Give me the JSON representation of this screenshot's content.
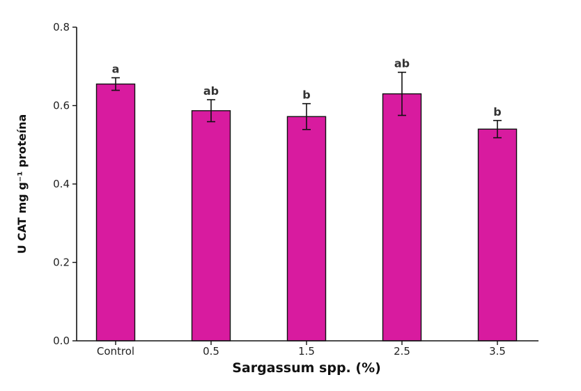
{
  "chart_data": {
    "type": "bar",
    "title": "",
    "xlabel": "Sargassum spp. (%)",
    "ylabel": "U CAT mg g⁻¹ proteína",
    "categories": [
      "Control",
      "0.5",
      "1.5",
      "2.5",
      "3.5"
    ],
    "values": [
      0.655,
      0.587,
      0.572,
      0.63,
      0.54
    ],
    "errors": [
      0.016,
      0.028,
      0.033,
      0.055,
      0.022
    ],
    "significance_labels": [
      "a",
      "ab",
      "b",
      "ab",
      "b"
    ],
    "ylim": [
      0,
      0.8
    ],
    "yticks": [
      "0.0",
      "0.2",
      "0.4",
      "0.6",
      "0.8"
    ],
    "grid": false,
    "colors": {
      "bar": "#d81b9f",
      "edge": "#111111"
    }
  }
}
